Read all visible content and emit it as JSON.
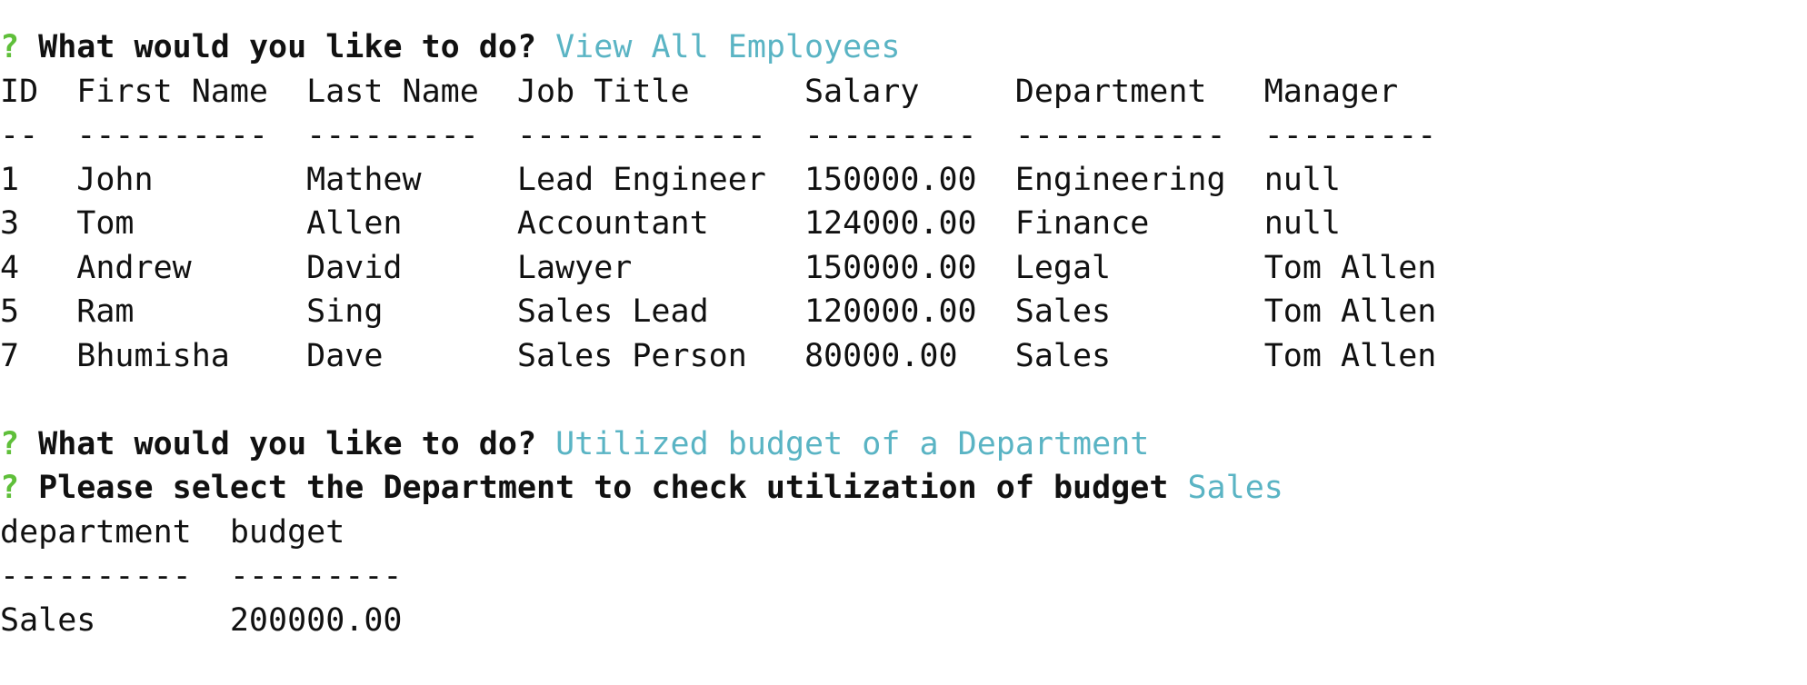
{
  "session": {
    "q_mark": "?",
    "prompt1": {
      "question": "What would you like to do?",
      "answer": "View All Employees"
    },
    "employees_table": {
      "headers": [
        "ID",
        "First Name",
        "Last Name",
        "Job Title",
        "Salary",
        "Department",
        "Manager"
      ],
      "separators": [
        "--",
        "----------",
        "---------",
        "-------------",
        "---------",
        "-----------",
        "---------"
      ],
      "rows": [
        [
          "1",
          "John",
          "Mathew",
          "Lead Engineer",
          "150000.00",
          "Engineering",
          "null"
        ],
        [
          "3",
          "Tom",
          "Allen",
          "Accountant",
          "124000.00",
          "Finance",
          "null"
        ],
        [
          "4",
          "Andrew",
          "David",
          "Lawyer",
          "150000.00",
          "Legal",
          "Tom Allen"
        ],
        [
          "5",
          "Ram",
          "Sing",
          "Sales Lead",
          "120000.00",
          "Sales",
          "Tom Allen"
        ],
        [
          "7",
          "Bhumisha",
          "Dave",
          "Sales Person",
          "80000.00",
          "Sales",
          "Tom Allen"
        ]
      ]
    },
    "prompt2": {
      "question": "What would you like to do?",
      "answer": "Utilized budget of a Department"
    },
    "prompt3": {
      "question": "Please select the Department to check utilization of budget",
      "answer": "Sales"
    },
    "budget_table": {
      "headers": [
        "department",
        "budget"
      ],
      "separators": [
        "----------",
        "---------"
      ],
      "rows": [
        [
          "Sales",
          "200000.00"
        ]
      ]
    }
  },
  "colors": {
    "q_mark": "#5fbf3a",
    "answer": "#5ab4c4",
    "text": "#111111",
    "background": "#ffffff"
  }
}
